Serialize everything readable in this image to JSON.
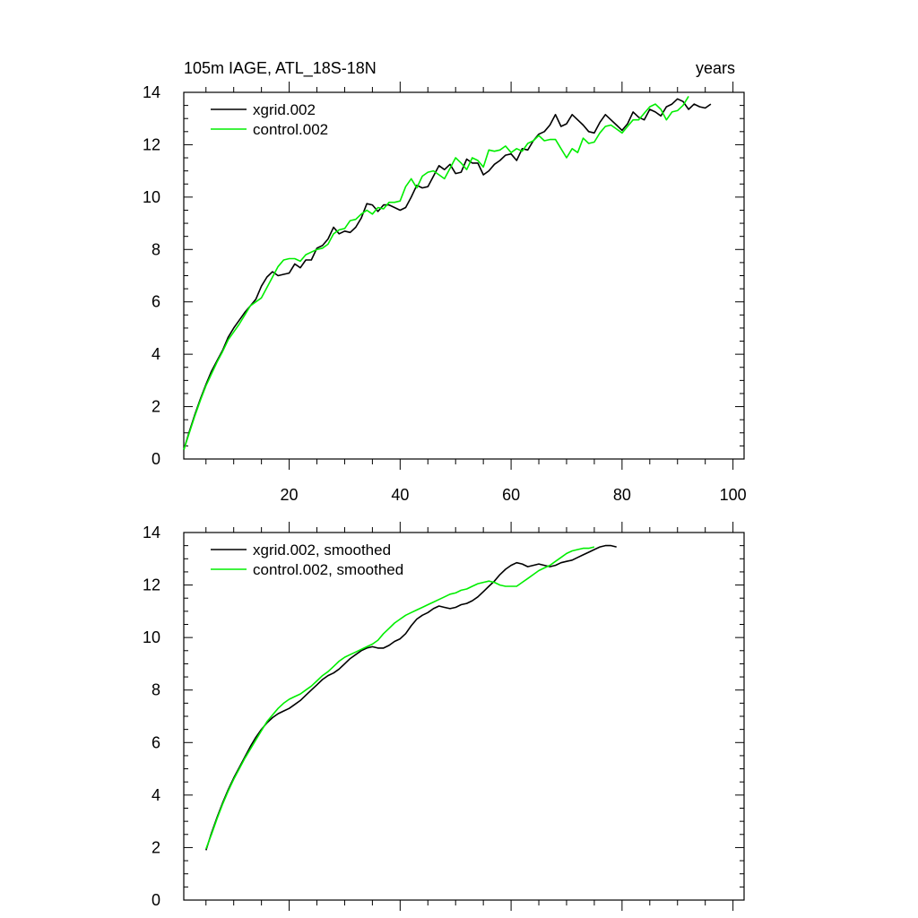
{
  "chart_data": [
    {
      "type": "line",
      "title_left": "105m IAGE, ATL_18S-18N",
      "title_right": "years",
      "xlim": [
        1,
        102
      ],
      "ylim": [
        0,
        14
      ],
      "xtick_labels": [
        "20",
        "40",
        "60",
        "80",
        "100"
      ],
      "ytick_labels": [
        "0",
        "2",
        "4",
        "6",
        "8",
        "10",
        "12",
        "14"
      ],
      "series": [
        {
          "name": "xgrid.002",
          "color": "#000000",
          "x_start": 1,
          "values": [
            0.35,
            1.05,
            1.7,
            2.3,
            2.85,
            3.35,
            3.75,
            4.15,
            4.65,
            5.0,
            5.3,
            5.6,
            5.85,
            6.1,
            6.6,
            6.95,
            7.15,
            7.0,
            7.05,
            7.1,
            7.45,
            7.3,
            7.6,
            7.6,
            8.05,
            8.15,
            8.4,
            8.85,
            8.6,
            8.7,
            8.65,
            8.85,
            9.2,
            9.75,
            9.7,
            9.45,
            9.7,
            9.7,
            9.6,
            9.5,
            9.6,
            10.0,
            10.45,
            10.35,
            10.4,
            10.8,
            11.2,
            11.05,
            11.25,
            10.9,
            10.95,
            11.45,
            11.3,
            11.3,
            10.85,
            11.0,
            11.25,
            11.4,
            11.6,
            11.65,
            11.4,
            11.85,
            11.8,
            12.15,
            12.4,
            12.5,
            12.75,
            13.15,
            12.7,
            12.8,
            13.15,
            12.95,
            12.75,
            12.5,
            12.45,
            12.85,
            13.15,
            12.95,
            12.75,
            12.55,
            12.8,
            13.25,
            13.05,
            12.95,
            13.35,
            13.25,
            13.1,
            13.45,
            13.55,
            13.75,
            13.65,
            13.35,
            13.55,
            13.45,
            13.4,
            13.55
          ]
        },
        {
          "name": "control.002",
          "color": "#00ee00",
          "x_start": 1,
          "values": [
            0.35,
            1.0,
            1.65,
            2.25,
            2.8,
            3.25,
            3.7,
            4.1,
            4.55,
            4.85,
            5.15,
            5.5,
            5.85,
            6.0,
            6.15,
            6.55,
            6.95,
            7.35,
            7.6,
            7.65,
            7.65,
            7.55,
            7.8,
            7.9,
            8.0,
            8.05,
            8.2,
            8.6,
            8.75,
            8.8,
            9.1,
            9.15,
            9.35,
            9.5,
            9.35,
            9.6,
            9.55,
            9.8,
            9.8,
            9.85,
            10.4,
            10.7,
            10.35,
            10.8,
            10.95,
            11.0,
            10.85,
            10.7,
            11.1,
            11.5,
            11.3,
            11.05,
            11.5,
            11.4,
            11.15,
            11.8,
            11.75,
            11.8,
            11.95,
            11.7,
            11.85,
            11.75,
            12.05,
            12.15,
            12.35,
            12.15,
            12.2,
            12.2,
            11.85,
            11.5,
            11.85,
            11.7,
            12.25,
            12.05,
            12.1,
            12.45,
            12.7,
            12.75,
            12.6,
            12.45,
            12.7,
            12.95,
            12.95,
            13.2,
            13.45,
            13.55,
            13.35,
            12.95,
            13.25,
            13.3,
            13.5,
            13.85
          ]
        }
      ]
    },
    {
      "type": "line",
      "xlim": [
        1,
        102
      ],
      "ylim": [
        0,
        14
      ],
      "xtick_labels": [],
      "ytick_labels": [
        "0",
        "2",
        "4",
        "6",
        "8",
        "10",
        "12",
        "14"
      ],
      "series": [
        {
          "name": "xgrid.002, smoothed",
          "color": "#000000",
          "x_start": 5,
          "values": [
            1.9,
            2.55,
            3.15,
            3.7,
            4.2,
            4.65,
            5.05,
            5.45,
            5.85,
            6.2,
            6.5,
            6.75,
            6.95,
            7.1,
            7.2,
            7.3,
            7.45,
            7.6,
            7.8,
            8.0,
            8.2,
            8.4,
            8.55,
            8.65,
            8.8,
            9.0,
            9.2,
            9.35,
            9.5,
            9.6,
            9.65,
            9.6,
            9.6,
            9.7,
            9.85,
            9.95,
            10.15,
            10.45,
            10.7,
            10.85,
            10.95,
            11.1,
            11.2,
            11.15,
            11.1,
            11.15,
            11.25,
            11.3,
            11.4,
            11.55,
            11.75,
            11.95,
            12.15,
            12.4,
            12.6,
            12.75,
            12.85,
            12.8,
            12.7,
            12.75,
            12.8,
            12.75,
            12.7,
            12.75,
            12.85,
            12.9,
            12.95,
            13.05,
            13.15,
            13.25,
            13.35,
            13.45,
            13.5,
            13.5,
            13.45
          ]
        },
        {
          "name": "control.002, smoothed",
          "color": "#00ee00",
          "x_start": 5,
          "values": [
            1.95,
            2.5,
            3.1,
            3.65,
            4.15,
            4.6,
            5.0,
            5.4,
            5.75,
            6.1,
            6.45,
            6.8,
            7.05,
            7.3,
            7.5,
            7.65,
            7.75,
            7.85,
            8.0,
            8.15,
            8.35,
            8.55,
            8.7,
            8.9,
            9.1,
            9.25,
            9.35,
            9.45,
            9.55,
            9.65,
            9.75,
            9.9,
            10.15,
            10.35,
            10.55,
            10.7,
            10.85,
            10.95,
            11.05,
            11.15,
            11.25,
            11.35,
            11.45,
            11.55,
            11.65,
            11.7,
            11.8,
            11.85,
            11.95,
            12.05,
            12.1,
            12.15,
            12.1,
            12.0,
            11.95,
            11.95,
            11.95,
            12.1,
            12.25,
            12.4,
            12.55,
            12.65,
            12.75,
            12.9,
            13.05,
            13.2,
            13.3,
            13.35,
            13.4,
            13.4,
            13.45
          ]
        }
      ]
    }
  ]
}
